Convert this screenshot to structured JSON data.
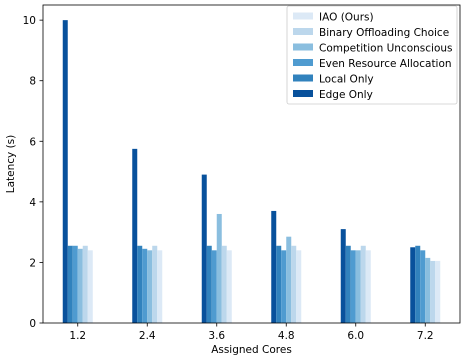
{
  "chart_data": {
    "type": "bar",
    "xlabel": "Assigned Cores",
    "ylabel": "Latency (s)",
    "ylim": [
      0,
      10.5
    ],
    "yticks": [
      0,
      2,
      4,
      6,
      8,
      10
    ],
    "categories": [
      "1.2",
      "2.4",
      "3.6",
      "4.8",
      "6.0",
      "7.2"
    ],
    "series": [
      {
        "name": "Edge Only",
        "color": "#08519c",
        "values": [
          10.0,
          5.75,
          4.9,
          3.7,
          3.1,
          2.5
        ]
      },
      {
        "name": "Local Only",
        "color": "#3182bd",
        "values": [
          2.55,
          2.55,
          2.55,
          2.55,
          2.55,
          2.55
        ]
      },
      {
        "name": "Even Resource Allocation",
        "color": "#4f9bd0",
        "values": [
          2.55,
          2.45,
          2.4,
          2.4,
          2.4,
          2.4
        ]
      },
      {
        "name": "Competition Unconscious",
        "color": "#8abedf",
        "values": [
          2.45,
          2.4,
          3.6,
          2.85,
          2.4,
          2.15
        ]
      },
      {
        "name": "Binary Offloading Choice",
        "color": "#bcd7ec",
        "values": [
          2.55,
          2.55,
          2.55,
          2.55,
          2.55,
          2.05
        ]
      },
      {
        "name": "IAO (Ours)",
        "color": "#dce9f6",
        "values": [
          2.4,
          2.4,
          2.4,
          2.4,
          2.4,
          2.05
        ]
      }
    ],
    "legend_order": [
      "IAO (Ours)",
      "Binary Offloading Choice",
      "Competition Unconscious",
      "Even Resource Allocation",
      "Local Only",
      "Edge Only"
    ],
    "legend_position": "top-right",
    "grid": false
  }
}
